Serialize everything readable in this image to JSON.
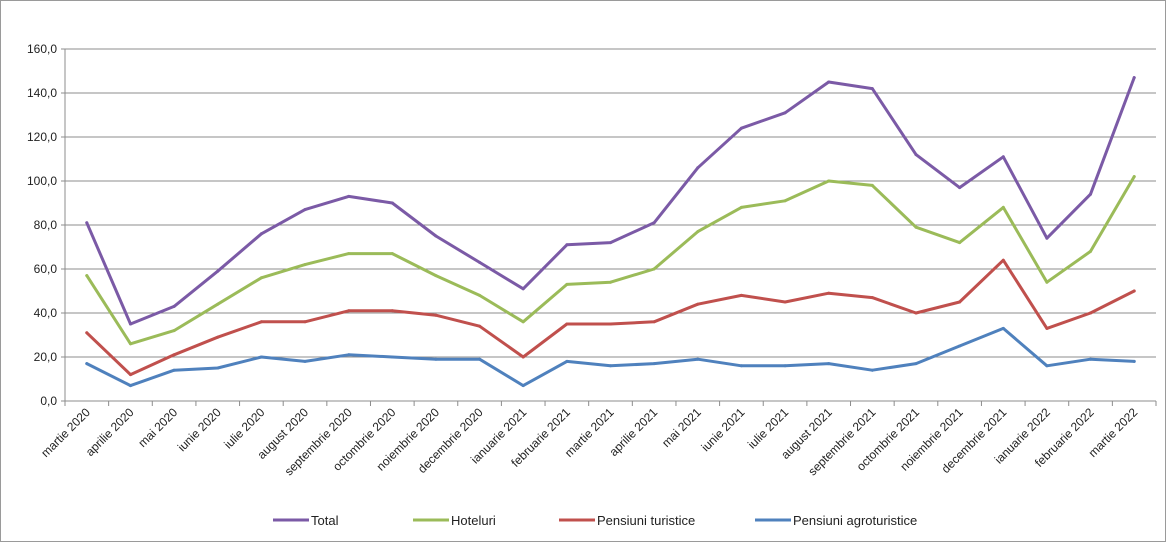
{
  "chart_data": {
    "type": "line",
    "title": "",
    "xlabel": "",
    "ylabel": "",
    "ylim": [
      0,
      160
    ],
    "y_ticks": [
      "0,0",
      "20,0",
      "40,0",
      "60,0",
      "80,0",
      "100,0",
      "120,0",
      "140,0",
      "160,0"
    ],
    "grid": "horizontal",
    "legend_position": "bottom",
    "categories": [
      "martie 2020",
      "aprilie 2020",
      "mai 2020",
      "iunie 2020",
      "iulie 2020",
      "august 2020",
      "septembrie 2020",
      "octombrie 2020",
      "noiembrie 2020",
      "decembrie 2020",
      "ianuarie 2021",
      "februarie 2021",
      "martie 2021",
      "aprilie 2021",
      "mai 2021",
      "iunie 2021",
      "iulie 2021",
      "august 2021",
      "septembrie 2021",
      "octombrie 2021",
      "noiembrie 2021",
      "decembrie 2021",
      "ianuarie 2022",
      "februarie 2022",
      "martie 2022"
    ],
    "series": [
      {
        "name": "Total",
        "color": "#7b5aa6",
        "values": [
          81,
          35,
          43,
          59,
          76,
          87,
          93,
          90,
          75,
          63,
          51,
          71,
          72,
          81,
          106,
          124,
          131,
          145,
          142,
          112,
          97,
          111,
          74,
          94,
          147
        ]
      },
      {
        "name": "Hoteluri",
        "color": "#9bbb59",
        "values": [
          57,
          26,
          32,
          44,
          56,
          62,
          67,
          67,
          57,
          48,
          36,
          53,
          54,
          60,
          77,
          88,
          91,
          100,
          98,
          79,
          72,
          88,
          54,
          68,
          102
        ]
      },
      {
        "name": "Pensiuni turistice",
        "color": "#c0504d",
        "values": [
          31,
          12,
          21,
          29,
          36,
          36,
          41,
          41,
          39,
          34,
          20,
          35,
          35,
          36,
          44,
          48,
          45,
          49,
          47,
          40,
          45,
          64,
          33,
          40,
          50
        ]
      },
      {
        "name": "Pensiuni agroturistice",
        "color": "#4f81bd",
        "values": [
          17,
          7,
          14,
          15,
          20,
          18,
          21,
          20,
          19,
          19,
          7,
          18,
          16,
          17,
          19,
          16,
          16,
          17,
          14,
          17,
          25,
          33,
          16,
          19,
          18
        ]
      }
    ]
  }
}
